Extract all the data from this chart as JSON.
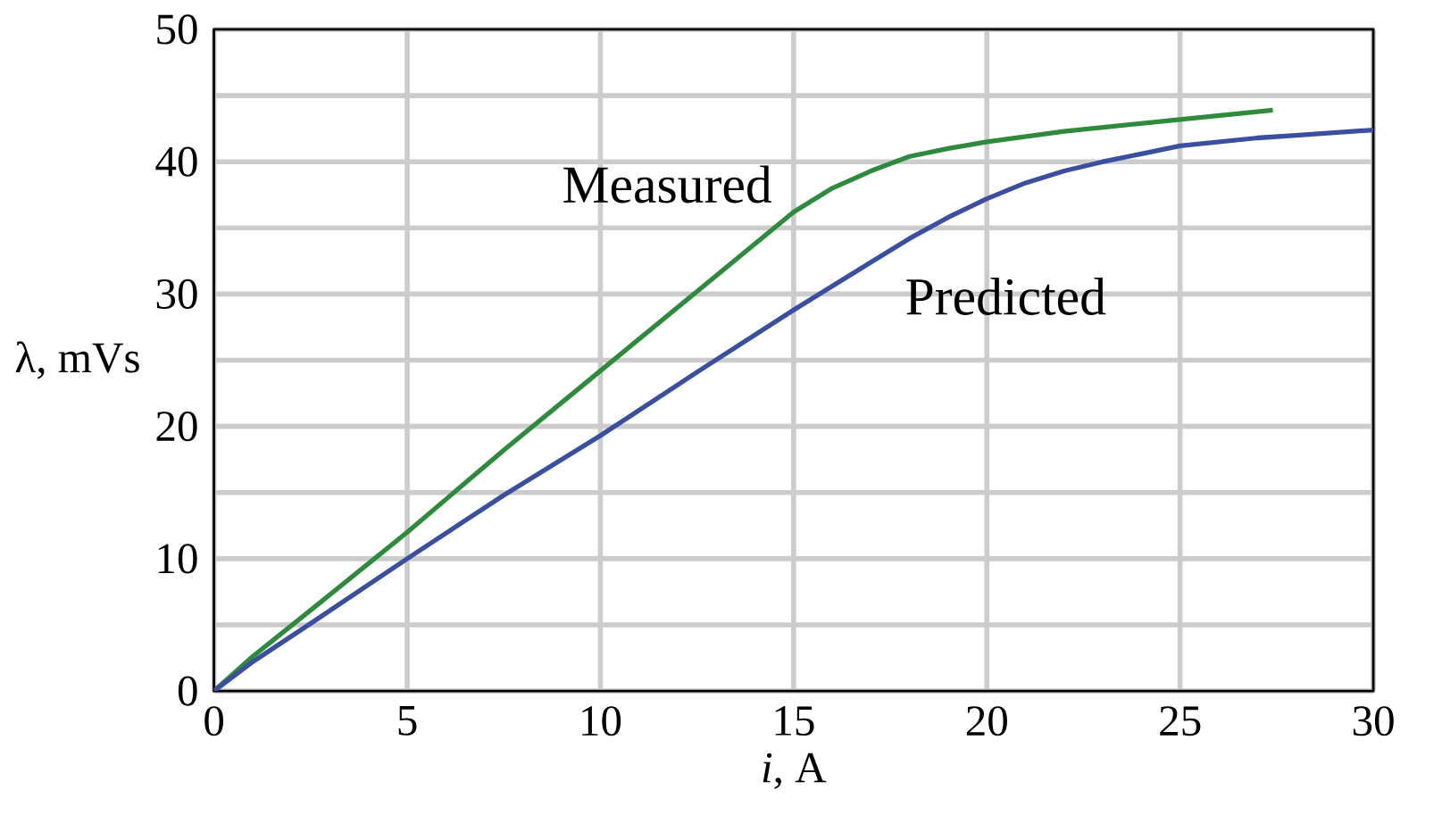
{
  "chart_data": {
    "type": "line",
    "xlabel": "*i*, A",
    "ylabel": "λ, mVs",
    "xlim": [
      0,
      30
    ],
    "ylim": [
      0,
      50
    ],
    "xticks": [
      0,
      5,
      10,
      15,
      20,
      25,
      30
    ],
    "yticks": [
      0,
      {
        "value": 5,
        "label": null
      },
      10,
      {
        "value": 15,
        "label": null
      },
      20,
      {
        "value": 25,
        "label": null
      },
      30,
      {
        "value": 35,
        "label": null
      },
      40,
      {
        "value": 45,
        "label": null
      },
      50
    ],
    "grid": true,
    "legend": false,
    "marker": "none",
    "line_style": "solid",
    "series": [
      {
        "name": "Measured",
        "color": "#2e8b3e",
        "x": [
          0,
          1,
          2.5,
          5,
          7.5,
          10,
          12.5,
          15,
          16,
          17,
          18,
          19,
          20,
          22,
          25,
          27.4
        ],
        "values": [
          0,
          2.6,
          6.1,
          12.0,
          18.2,
          24.2,
          30.2,
          36.2,
          38.0,
          39.3,
          40.4,
          41.0,
          41.5,
          42.3,
          43.2,
          43.9
        ]
      },
      {
        "name": "Predicted",
        "color": "#3a4fa0",
        "x": [
          0,
          1,
          2.5,
          5,
          7.5,
          10,
          12.5,
          15,
          17,
          18,
          19,
          20,
          21,
          22,
          23,
          24,
          25,
          26,
          27,
          28,
          30
        ],
        "values": [
          0,
          2.2,
          5.1,
          10.0,
          14.8,
          19.3,
          24.1,
          28.8,
          32.4,
          34.2,
          35.8,
          37.2,
          38.4,
          39.3,
          40.0,
          40.6,
          41.2,
          41.5,
          41.8,
          42.0,
          42.4
        ]
      }
    ]
  }
}
